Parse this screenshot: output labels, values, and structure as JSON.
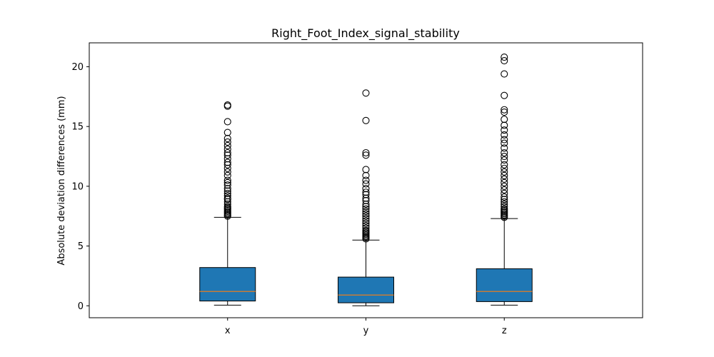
{
  "chart_data": {
    "type": "boxplot",
    "title": "Right_Foot_Index_signal_stability",
    "xlabel": "",
    "ylabel": "Absolute deviation differences (mm)",
    "categories": [
      "x",
      "y",
      "z"
    ],
    "ylim": [
      -1.0,
      22.0
    ],
    "yticks": [
      0,
      5,
      10,
      15,
      20
    ],
    "grid": false,
    "legend": "none",
    "box_color": "#1f77b4",
    "median_color": "#ff7f0e",
    "boxes": [
      {
        "label": "x",
        "whisker_low": 0.05,
        "q1": 0.4,
        "median": 1.2,
        "q3": 3.2,
        "whisker_high": 7.4,
        "outliers": [
          7.5,
          7.6,
          7.7,
          7.8,
          7.9,
          8.0,
          8.1,
          8.2,
          8.3,
          8.5,
          8.7,
          8.9,
          9.0,
          9.2,
          9.4,
          9.6,
          9.8,
          10.1,
          10.3,
          10.5,
          10.9,
          11.2,
          11.5,
          11.8,
          12.0,
          12.3,
          12.6,
          12.8,
          13.1,
          13.4,
          13.7,
          14.0,
          14.5,
          15.4,
          16.7,
          16.8
        ]
      },
      {
        "label": "y",
        "whisker_low": 0.0,
        "q1": 0.25,
        "median": 0.9,
        "q3": 2.4,
        "whisker_high": 5.5,
        "outliers": [
          5.6,
          5.7,
          5.8,
          5.9,
          6.0,
          6.1,
          6.2,
          6.3,
          6.5,
          6.7,
          6.9,
          7.1,
          7.3,
          7.5,
          7.7,
          7.9,
          8.1,
          8.3,
          8.5,
          8.8,
          9.0,
          9.3,
          9.5,
          9.8,
          10.2,
          10.5,
          10.9,
          11.4,
          12.6,
          12.8,
          15.5,
          17.8
        ]
      },
      {
        "label": "z",
        "whisker_low": 0.05,
        "q1": 0.35,
        "median": 1.2,
        "q3": 3.1,
        "whisker_high": 7.3,
        "outliers": [
          7.4,
          7.5,
          7.6,
          7.7,
          7.8,
          7.9,
          8.0,
          8.1,
          8.3,
          8.5,
          8.7,
          8.9,
          9.1,
          9.4,
          9.7,
          10.0,
          10.3,
          10.6,
          10.9,
          11.2,
          11.5,
          11.8,
          12.2,
          12.5,
          12.8,
          13.2,
          13.6,
          13.9,
          14.3,
          14.7,
          15.1,
          15.6,
          16.2,
          16.4,
          17.6,
          19.4,
          20.5,
          20.8
        ]
      }
    ]
  }
}
